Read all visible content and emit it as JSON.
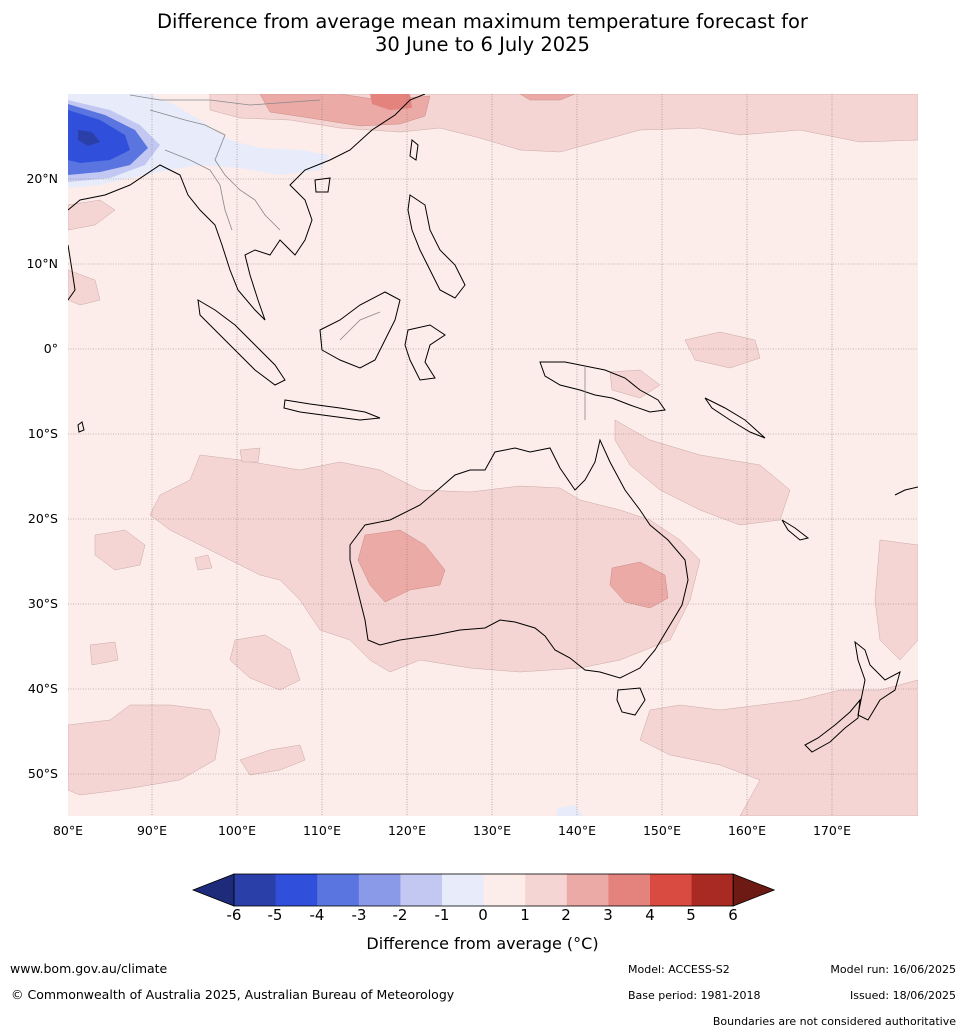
{
  "title_line1": "Difference from average mean maximum temperature forecast for",
  "title_line2": "30 June to 6 July 2025",
  "map": {
    "lat_labels": [
      "20°N",
      "10°N",
      "0°",
      "10°S",
      "20°S",
      "30°S",
      "40°S",
      "50°S"
    ],
    "lon_labels": [
      "80°E",
      "90°E",
      "100°E",
      "110°E",
      "120°E",
      "130°E",
      "140°E",
      "150°E",
      "160°E",
      "170°E"
    ]
  },
  "legend": {
    "ticks": [
      "-6",
      "-5",
      "-4",
      "-3",
      "-2",
      "-1",
      "0",
      "1",
      "2",
      "3",
      "4",
      "5",
      "6"
    ],
    "colors": [
      "#1e2a7a",
      "#2a3fa8",
      "#3050dc",
      "#5a74e0",
      "#8a9ae8",
      "#c2c8f2",
      "#e8ecfa",
      "#fcecea",
      "#f5d5d3",
      "#ebaaa6",
      "#e4837d",
      "#d94a40",
      "#a82a22",
      "#6e1a14"
    ],
    "label": "Difference from average (°C)"
  },
  "footer": {
    "website": "www.bom.gov.au/climate",
    "copyright": "© Commonwealth of Australia 2025, Australian Bureau of Meteorology",
    "model": "Model: ACCESS-S2",
    "base_period": "Base period: 1981-2018",
    "model_run": "Model run: 16/06/2025",
    "issued": "Issued: 18/06/2025",
    "disclaimer": "Boundaries are not considered authoritative"
  }
}
